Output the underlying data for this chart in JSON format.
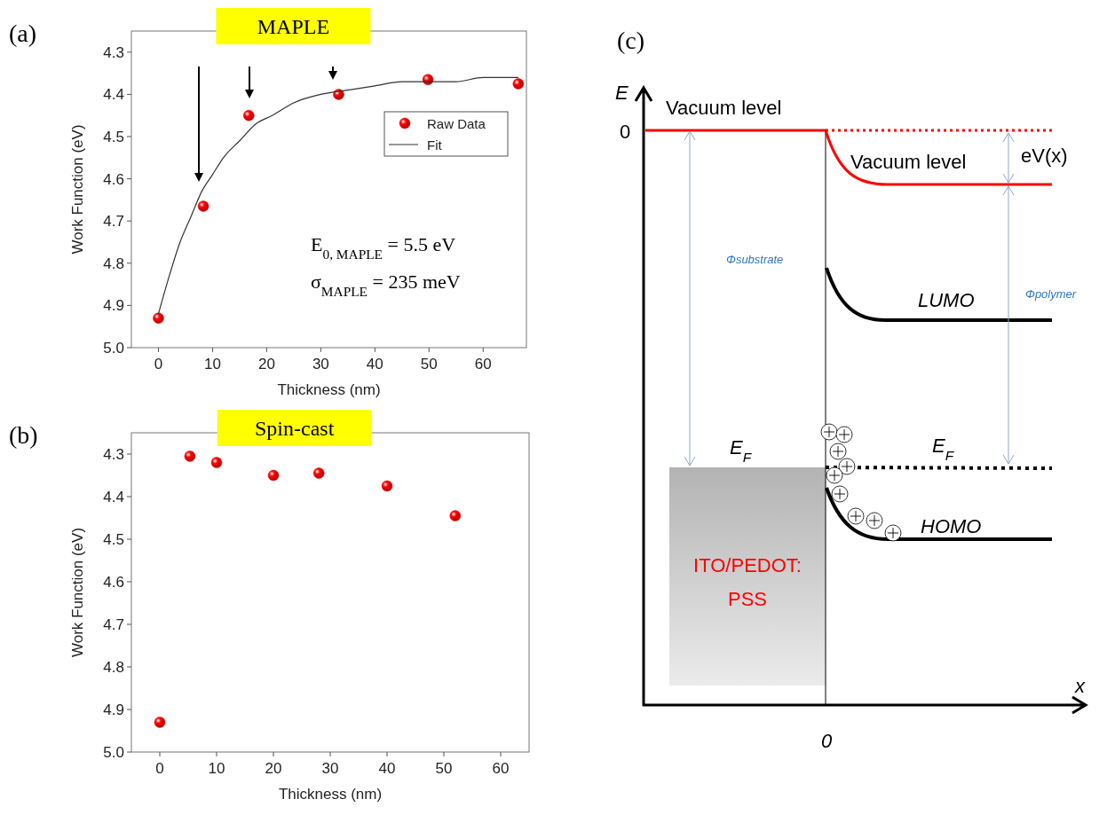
{
  "chart_data": [
    {
      "type": "scatter",
      "title": "MAPLE",
      "xlabel": "Thickness (nm)",
      "ylabel": "Work Function (eV)",
      "xlim": [
        -5,
        68
      ],
      "xticks": [
        0,
        10,
        20,
        30,
        40,
        50,
        60
      ],
      "ylim": [
        5.0,
        4.25
      ],
      "yticks": [
        4.3,
        4.4,
        4.5,
        4.6,
        4.7,
        4.8,
        4.9,
        {
          "value": 5,
          "label": "5.0"
        }
      ],
      "legend": "top right",
      "grid": false,
      "annotations": [
        "(a)",
        "E$_{0, MAPLE}$ = 5.5 eV",
        "σ$_{MAPLE}$ = 235 meV"
      ],
      "series": [
        {
          "name": "Raw Data",
          "type": "scatter",
          "color": "#ff0000",
          "x": [
            0,
            8.3,
            16.7,
            33.3,
            49.8,
            66.5
          ],
          "values": [
            4.93,
            4.665,
            4.45,
            4.4,
            4.365,
            4.375
          ]
        },
        {
          "name": "Fit",
          "type": "line",
          "color": "#333333",
          "x": [
            0,
            2,
            4,
            6,
            8,
            10,
            12,
            15,
            18,
            21,
            25,
            30,
            35,
            40,
            45,
            50,
            55,
            60,
            66.5
          ],
          "values": [
            4.92,
            4.83,
            4.75,
            4.69,
            4.63,
            4.59,
            4.55,
            4.51,
            4.47,
            4.45,
            4.42,
            4.4,
            4.39,
            4.38,
            4.37,
            4.37,
            4.37,
            4.36,
            4.36
          ]
        }
      ]
    },
    {
      "type": "scatter",
      "title": "Spin-cast",
      "xlabel": "Thickness (nm)",
      "ylabel": "Work Function (eV)",
      "xlim": [
        -5,
        65
      ],
      "xticks": [
        0,
        10,
        20,
        30,
        40,
        50,
        60
      ],
      "ylim": [
        5.0,
        4.25
      ],
      "yticks": [
        4.3,
        4.4,
        4.5,
        4.6,
        4.7,
        4.8,
        4.9,
        {
          "value": 5,
          "label": "5.0"
        }
      ],
      "grid": false,
      "annotations": [
        "(b)"
      ],
      "series": [
        {
          "type": "scatter",
          "color": "#ff0000",
          "x": [
            0,
            5.3,
            10,
            20,
            28,
            40,
            52
          ],
          "values": [
            4.93,
            4.305,
            4.32,
            4.35,
            4.345,
            4.375,
            4.445
          ]
        }
      ]
    },
    {
      "type": "other",
      "annotations": [
        "(c)",
        "E",
        "0",
        "Vacuum level",
        "Vacuum level",
        "eV(x)",
        "Φsubstrate",
        "Φpolymer",
        "LUMO",
        "HOMO",
        "E$_{F}$",
        "E$_{F}$",
        "ITO/PEDOT:PSS",
        "x",
        "0"
      ]
    }
  ]
}
